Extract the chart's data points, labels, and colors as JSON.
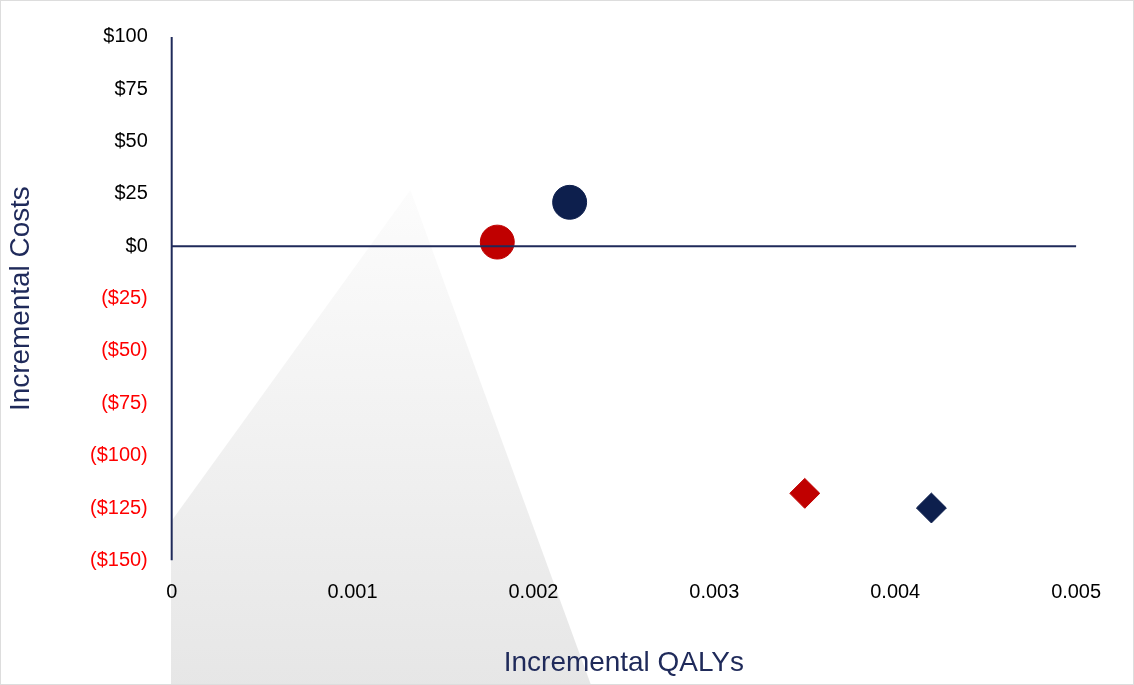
{
  "chart_data": {
    "type": "scatter",
    "xlabel": "Incremental QALYs",
    "ylabel": "Incremental Costs",
    "xlim": [
      0,
      0.005
    ],
    "xticks": [
      0,
      0.001,
      0.002,
      0.003,
      0.004,
      0.005
    ],
    "ylim": [
      -150,
      100
    ],
    "yticks": [
      {
        "value": 100,
        "label": "$100"
      },
      {
        "value": 75,
        "label": "$75"
      },
      {
        "value": 50,
        "label": "$50"
      },
      {
        "value": 25,
        "label": "$25"
      },
      {
        "value": 0,
        "label": "$0"
      },
      {
        "value": -25,
        "label": "($25)"
      },
      {
        "value": -50,
        "label": "($50)"
      },
      {
        "value": -75,
        "label": "($75)"
      },
      {
        "value": -100,
        "label": "($100)"
      },
      {
        "value": -125,
        "label": "($125)"
      },
      {
        "value": -150,
        "label": "($150)"
      }
    ],
    "grid": false,
    "legend": false,
    "series": [
      {
        "color": "#0d1f4d",
        "marker": "circle",
        "x": [
          0.0022
        ],
        "values": [
          21
        ]
      },
      {
        "color": "#c00000",
        "marker": "circle",
        "x": [
          0.0018
        ],
        "values": [
          2
        ]
      },
      {
        "color": "#c00000",
        "marker": "diamond",
        "x": [
          0.0035
        ],
        "values": [
          -118
        ]
      },
      {
        "color": "#0d1f4d",
        "marker": "diamond",
        "x": [
          0.0042
        ],
        "values": [
          -125
        ]
      }
    ]
  }
}
